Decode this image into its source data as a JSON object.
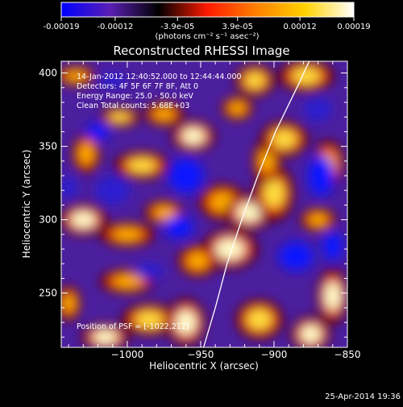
{
  "colorbar": {
    "tick_labels": [
      "-0.00019",
      "-0.00012",
      "-3.9e-05",
      "3.9e-05",
      "0.00012",
      "0.00019"
    ],
    "tick_values": [
      -0.00019,
      -0.00012,
      -3.9e-05,
      3.9e-05,
      0.00012,
      0.00019
    ],
    "range": [
      -0.00019,
      0.00019
    ],
    "unit_label": "(photons cm⁻² s⁻¹ asec⁻²)",
    "colors": [
      "#0000ff",
      "#5a1fb4",
      "#000000",
      "#ff1a00",
      "#ff8000",
      "#ffd200",
      "#ffffff"
    ]
  },
  "chart_data": {
    "type": "heatmap",
    "title": "Reconstructed RHESSI Image",
    "xlabel": "Heliocentric X (arcsec)",
    "ylabel": "Heliocentric Y (arcsec)",
    "xlim": [
      -1045,
      -850
    ],
    "ylim": [
      213,
      408
    ],
    "xticks": [
      -1000,
      -950,
      -900,
      -850
    ],
    "xtick_labels": [
      "−1000",
      "−950",
      "−900",
      "−850"
    ],
    "yticks": [
      250,
      300,
      350,
      400
    ],
    "ytick_labels": [
      "250",
      "300",
      "350",
      "400"
    ],
    "annotations": [
      "14-Jan-2012 12:40:52.000 to 12:44:44.000",
      "Detectors: 4F 5F 6F 7F 8F, Att 0",
      "Energy Range: 25.0 - 50.0 keV",
      "Clean     Total counts: 5.68E+03"
    ],
    "position_label": "Position of PSF = [-1022,212]",
    "limb_curve": [
      [
        -948,
        213
      ],
      [
        -940,
        240
      ],
      [
        -932,
        270
      ],
      [
        -922,
        300
      ],
      [
        -911,
        330
      ],
      [
        -899,
        360
      ],
      [
        -882,
        395
      ],
      [
        -876,
        408
      ]
    ],
    "blobs": [
      {
        "x": -955,
        "y": 357,
        "level": 0.95,
        "rx": 11,
        "ry": 8
      },
      {
        "x": -990,
        "y": 337,
        "level": 0.7,
        "rx": 14,
        "ry": 7
      },
      {
        "x": -975,
        "y": 372,
        "level": 0.5,
        "rx": 10,
        "ry": 6
      },
      {
        "x": -1005,
        "y": 370,
        "level": 0.75,
        "rx": 10,
        "ry": 5
      },
      {
        "x": -1028,
        "y": 345,
        "level": 0.45,
        "rx": 7,
        "ry": 10
      },
      {
        "x": -1030,
        "y": 300,
        "level": 0.8,
        "rx": 12,
        "ry": 8
      },
      {
        "x": -1000,
        "y": 290,
        "level": 0.55,
        "rx": 14,
        "ry": 6
      },
      {
        "x": -975,
        "y": 305,
        "level": 0.45,
        "rx": 10,
        "ry": 6
      },
      {
        "x": -935,
        "y": 312,
        "level": 0.5,
        "rx": 12,
        "ry": 9
      },
      {
        "x": -917,
        "y": 305,
        "level": 0.95,
        "rx": 12,
        "ry": 9
      },
      {
        "x": -900,
        "y": 318,
        "level": 0.6,
        "rx": 10,
        "ry": 14
      },
      {
        "x": -930,
        "y": 280,
        "level": 0.8,
        "rx": 14,
        "ry": 10
      },
      {
        "x": -952,
        "y": 272,
        "level": 0.55,
        "rx": 10,
        "ry": 8
      },
      {
        "x": -905,
        "y": 340,
        "level": 0.55,
        "rx": 7,
        "ry": 11
      },
      {
        "x": -893,
        "y": 355,
        "level": 0.6,
        "rx": 12,
        "ry": 9
      },
      {
        "x": -863,
        "y": 338,
        "level": 0.55,
        "rx": 8,
        "ry": 12
      },
      {
        "x": -913,
        "y": 395,
        "level": 0.7,
        "rx": 10,
        "ry": 8
      },
      {
        "x": -878,
        "y": 398,
        "level": 0.65,
        "rx": 14,
        "ry": 8
      },
      {
        "x": -870,
        "y": 300,
        "level": 0.45,
        "rx": 9,
        "ry": 6
      },
      {
        "x": -860,
        "y": 248,
        "level": 0.8,
        "rx": 8,
        "ry": 14
      },
      {
        "x": -875,
        "y": 222,
        "level": 0.95,
        "rx": 10,
        "ry": 9
      },
      {
        "x": -910,
        "y": 232,
        "level": 0.6,
        "rx": 12,
        "ry": 10
      },
      {
        "x": -1000,
        "y": 258,
        "level": 0.55,
        "rx": 14,
        "ry": 6
      },
      {
        "x": -985,
        "y": 232,
        "level": 0.65,
        "rx": 14,
        "ry": 8
      },
      {
        "x": -1015,
        "y": 220,
        "level": 0.85,
        "rx": 12,
        "ry": 7
      },
      {
        "x": -960,
        "y": 230,
        "level": 1.0,
        "rx": 10,
        "ry": 12
      },
      {
        "x": -1040,
        "y": 243,
        "level": 0.55,
        "rx": 6,
        "ry": 9
      },
      {
        "x": -1035,
        "y": 398,
        "level": 0.5,
        "rx": 10,
        "ry": 5
      },
      {
        "x": -925,
        "y": 376,
        "level": 0.5,
        "rx": 8,
        "ry": 6
      },
      {
        "x": -1010,
        "y": 320,
        "level": -0.7,
        "rx": 12,
        "ry": 10
      },
      {
        "x": -960,
        "y": 330,
        "level": -0.75,
        "rx": 12,
        "ry": 12
      },
      {
        "x": -965,
        "y": 295,
        "level": -0.95,
        "rx": 10,
        "ry": 8
      },
      {
        "x": -985,
        "y": 265,
        "level": -0.7,
        "rx": 10,
        "ry": 6
      },
      {
        "x": -868,
        "y": 330,
        "level": -0.8,
        "rx": 9,
        "ry": 14
      },
      {
        "x": -885,
        "y": 275,
        "level": -0.9,
        "rx": 12,
        "ry": 10
      },
      {
        "x": -860,
        "y": 282,
        "level": -0.75,
        "rx": 7,
        "ry": 10
      },
      {
        "x": -1020,
        "y": 360,
        "level": -0.75,
        "rx": 8,
        "ry": 6
      },
      {
        "x": -870,
        "y": 375,
        "level": -0.55,
        "rx": 10,
        "ry": 8
      },
      {
        "x": -1040,
        "y": 322,
        "level": -0.5,
        "rx": 6,
        "ry": 8
      },
      {
        "x": -1010,
        "y": 395,
        "level": -0.5,
        "rx": 9,
        "ry": 5
      }
    ]
  },
  "footer": {
    "timestamp": "25-Apr-2014 19:36"
  }
}
